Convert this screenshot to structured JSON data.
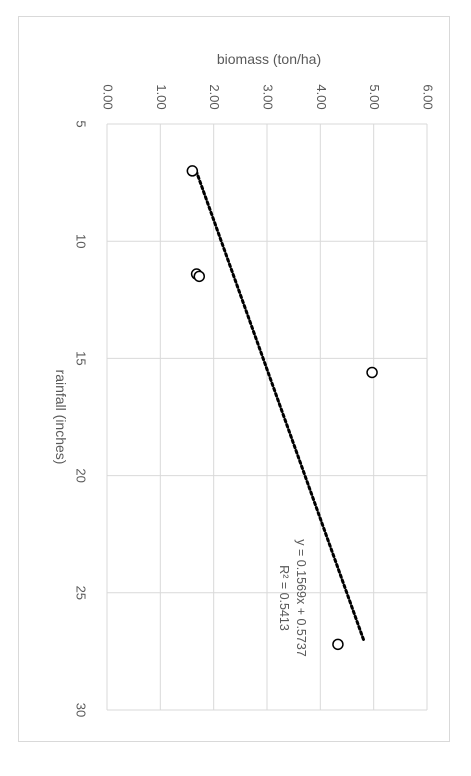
{
  "chart_data": {
    "type": "scatter",
    "title": "",
    "xlabel": "rainfall (inches)",
    "ylabel": "biomass (ton/ha)",
    "xlim": [
      5,
      30
    ],
    "ylim": [
      0,
      6
    ],
    "x_ticks": [
      "5",
      "10",
      "15",
      "20",
      "25",
      "30"
    ],
    "y_ticks": [
      "0.00",
      "1.00",
      "2.00",
      "3.00",
      "4.00",
      "5.00",
      "6.00"
    ],
    "grid": true,
    "points": [
      {
        "x": 7.0,
        "y": 1.6
      },
      {
        "x": 11.4,
        "y": 1.68
      },
      {
        "x": 11.5,
        "y": 1.73
      },
      {
        "x": 15.6,
        "y": 4.97
      },
      {
        "x": 27.2,
        "y": 4.33
      }
    ],
    "trendline": {
      "type": "linear",
      "x_range": [
        7.0,
        27.0
      ],
      "equation": "y = 0.1569x + 0.5737",
      "r_squared": "R² = 0.5413"
    },
    "orientation": "rotated-90-clockwise",
    "colors": {
      "grid": "#d9d9d9",
      "marker": "#000000",
      "trendline": "#000000",
      "text": "#595959"
    }
  }
}
